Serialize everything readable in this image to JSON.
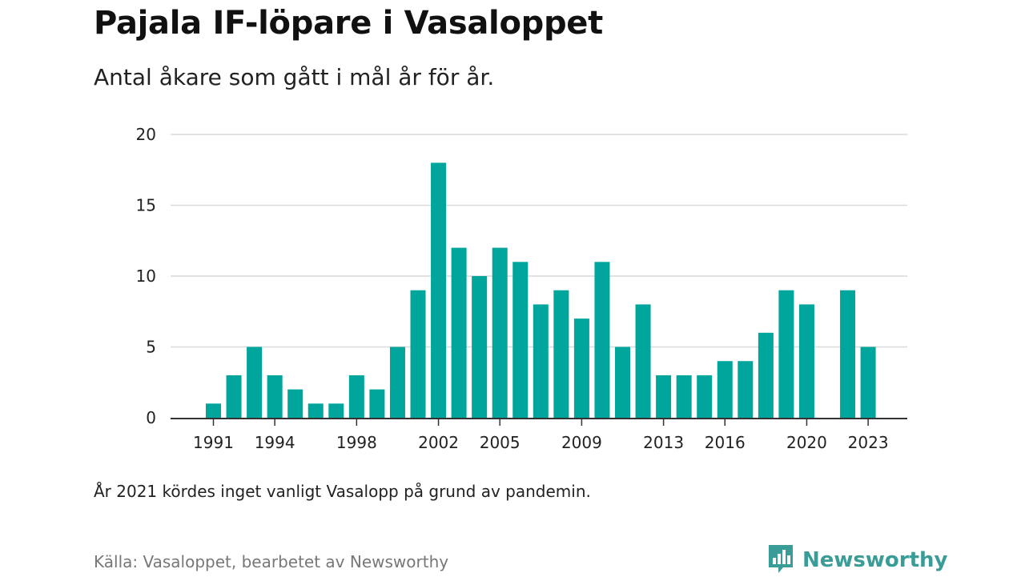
{
  "header": {
    "title": "Pajala IF-löpare i Vasaloppet",
    "subtitle": "Antal åkare som gått i mål år för år."
  },
  "footer": {
    "note": "År 2021 kördes inget vanligt Vasalopp på grund av pandemin.",
    "source": "Källa: Vasaloppet, bearbetet av Newsworthy",
    "brand": "Newsworthy"
  },
  "colors": {
    "bar": "#00a59c",
    "grid": "#d9d9d9",
    "axis": "#333333",
    "brand": "#3a9c96"
  },
  "icons": {
    "brand_logo": "newsworthy-logo-icon"
  },
  "chart_data": {
    "type": "bar",
    "title": "Pajala IF-löpare i Vasaloppet",
    "subtitle": "Antal åkare som gått i mål år för år.",
    "xlabel": "",
    "ylabel": "",
    "ylim": [
      0,
      20
    ],
    "yticks": [
      0,
      5,
      10,
      15,
      20
    ],
    "xticks": [
      1991,
      1994,
      1998,
      2002,
      2005,
      2009,
      2013,
      2016,
      2020,
      2023
    ],
    "grid": true,
    "categories": [
      1991,
      1992,
      1993,
      1994,
      1995,
      1996,
      1997,
      1998,
      1999,
      2000,
      2001,
      2002,
      2003,
      2004,
      2005,
      2006,
      2007,
      2008,
      2009,
      2010,
      2011,
      2012,
      2013,
      2014,
      2015,
      2016,
      2017,
      2018,
      2019,
      2020,
      2021,
      2022,
      2023
    ],
    "values": [
      1,
      3,
      5,
      3,
      2,
      1,
      1,
      3,
      2,
      5,
      9,
      18,
      12,
      10,
      12,
      11,
      8,
      9,
      7,
      11,
      5,
      8,
      3,
      3,
      3,
      4,
      4,
      6,
      9,
      8,
      0,
      9,
      5
    ]
  }
}
